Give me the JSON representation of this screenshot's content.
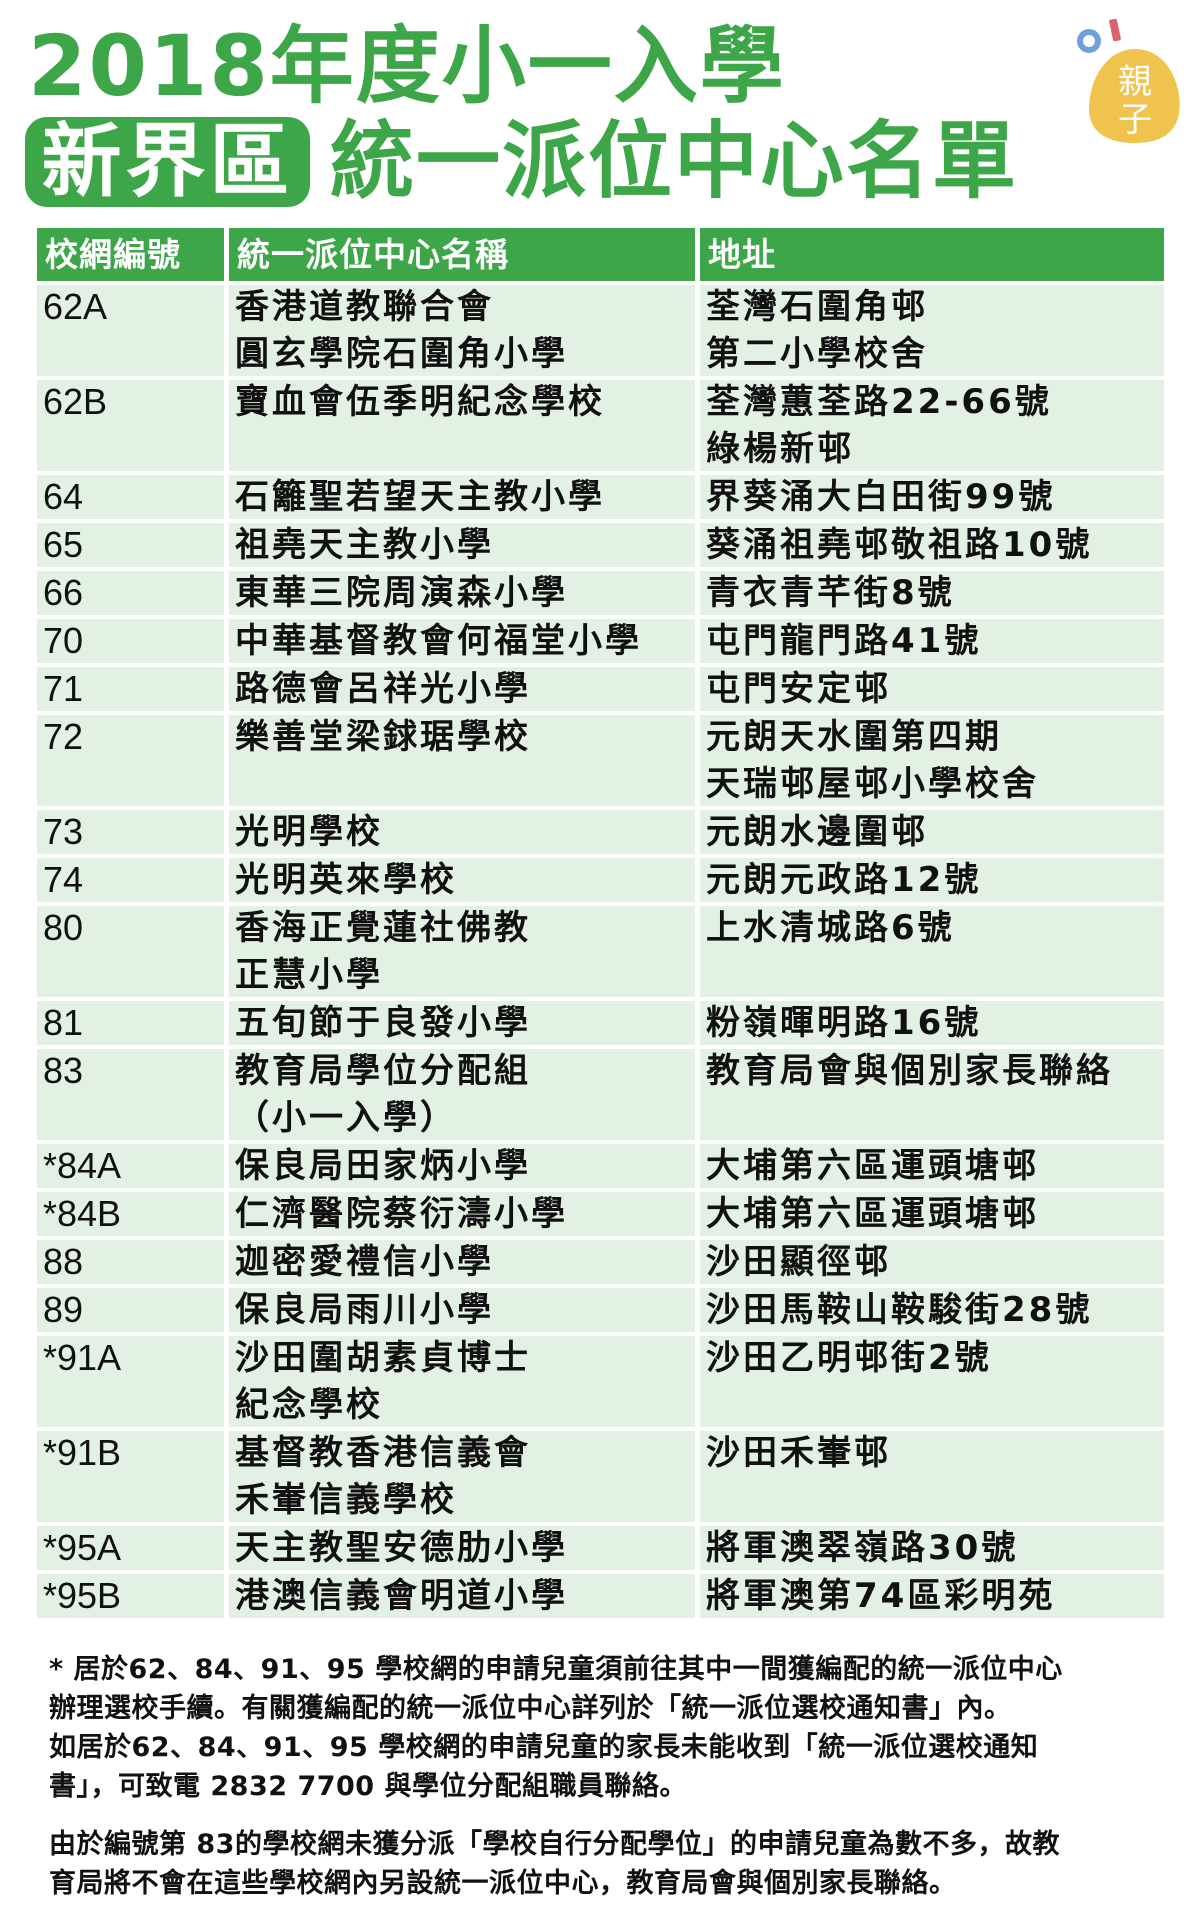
{
  "title": {
    "line1": "2018年度小一入學",
    "badge": "新界區",
    "line2": "統一派位中心名單"
  },
  "logo": {
    "text_line1": "親",
    "text_line2": "子",
    "colors": {
      "egg": "#f0c24e",
      "ring": "#6fa0dc",
      "bar": "#d9646e"
    }
  },
  "colors": {
    "accent": "#3da648",
    "row_bg": "#e3f0e4"
  },
  "table": {
    "headers": [
      "校網編號",
      "統一派位中心名稱",
      "地址"
    ],
    "rows": [
      {
        "code": "62A",
        "name": [
          "香港道教聯合會",
          "圓玄學院石圍角小學"
        ],
        "address": [
          "荃灣石圍角邨",
          "第二小學校舍"
        ]
      },
      {
        "code": "62B",
        "name": [
          "寶血會伍季明紀念學校"
        ],
        "address": [
          "荃灣蕙荃路22-66號",
          "綠楊新邨"
        ]
      },
      {
        "code": "64",
        "name": [
          "石籬聖若望天主教小學"
        ],
        "address": [
          "界葵涌大白田街99號"
        ]
      },
      {
        "code": "65",
        "name": [
          "祖堯天主教小學"
        ],
        "address": [
          "葵涌祖堯邨敬祖路10號"
        ]
      },
      {
        "code": "66",
        "name": [
          "東華三院周演森小學"
        ],
        "address": [
          "青衣青芊街8號"
        ]
      },
      {
        "code": "70",
        "name": [
          "中華基督教會何福堂小學"
        ],
        "address": [
          "屯門龍門路41號"
        ]
      },
      {
        "code": "71",
        "name": [
          "路德會呂祥光小學"
        ],
        "address": [
          "屯門安定邨"
        ]
      },
      {
        "code": "72",
        "name": [
          "樂善堂梁銶琚學校"
        ],
        "address": [
          "元朗天水圍第四期",
          "天瑞邨屋邨小學校舍"
        ]
      },
      {
        "code": "73",
        "name": [
          "光明學校"
        ],
        "address": [
          "元朗水邊圍邨"
        ]
      },
      {
        "code": "74",
        "name": [
          "光明英來學校"
        ],
        "address": [
          "元朗元政路12號"
        ]
      },
      {
        "code": "80",
        "name": [
          "香海正覺蓮社佛教",
          "正慧小學"
        ],
        "address": [
          "上水清城路6號"
        ]
      },
      {
        "code": "81",
        "name": [
          "五旬節于良發小學"
        ],
        "address": [
          "粉嶺暉明路16號"
        ]
      },
      {
        "code": "83",
        "name": [
          "教育局學位分配組",
          "（小一入學）"
        ],
        "address": [
          "教育局會與個別家長聯絡"
        ]
      },
      {
        "code": "*84A",
        "name": [
          "保良局田家炳小學"
        ],
        "address": [
          "大埔第六區運頭塘邨"
        ]
      },
      {
        "code": "*84B",
        "name": [
          "仁濟醫院蔡衍濤小學"
        ],
        "address": [
          "大埔第六區運頭塘邨"
        ]
      },
      {
        "code": "88",
        "name": [
          "迦密愛禮信小學"
        ],
        "address": [
          "沙田顯徑邨"
        ]
      },
      {
        "code": "89",
        "name": [
          "保良局雨川小學"
        ],
        "address": [
          "沙田馬鞍山鞍駿街28號"
        ]
      },
      {
        "code": "*91A",
        "name": [
          "沙田圍胡素貞博士",
          "紀念學校"
        ],
        "address": [
          "沙田乙明邨街2號"
        ]
      },
      {
        "code": "*91B",
        "name": [
          "基督教香港信義會",
          "禾輋信義學校"
        ],
        "address": [
          "沙田禾輋邨"
        ]
      },
      {
        "code": "*95A",
        "name": [
          "天主教聖安德肋小學"
        ],
        "address": [
          "將軍澳翠嶺路30號"
        ]
      },
      {
        "code": "*95B",
        "name": [
          "港澳信義會明道小學"
        ],
        "address": [
          "將軍澳第74區彩明苑"
        ]
      }
    ]
  },
  "notes": [
    [
      "* 居於62、84、91、95 學校網的申請兒童須前往其中一間獲編配的統一派位中心",
      "辦理選校手續。有關獲編配的統一派位中心詳列於「統一派位選校通知書」內。",
      "如居於62、84、91、95 學校網的申請兒童的家長未能收到「統一派位選校通知",
      "書」，可致電 2832 7700 與學位分配組職員聯絡。"
    ],
    [
      "由於編號第 83的學校網未獲分派「學校自行分配學位」的申請兒童為數不多，故教",
      "育局將不會在這些學校網內另設統一派位中心，教育局會與個別家長聯絡。"
    ]
  ]
}
